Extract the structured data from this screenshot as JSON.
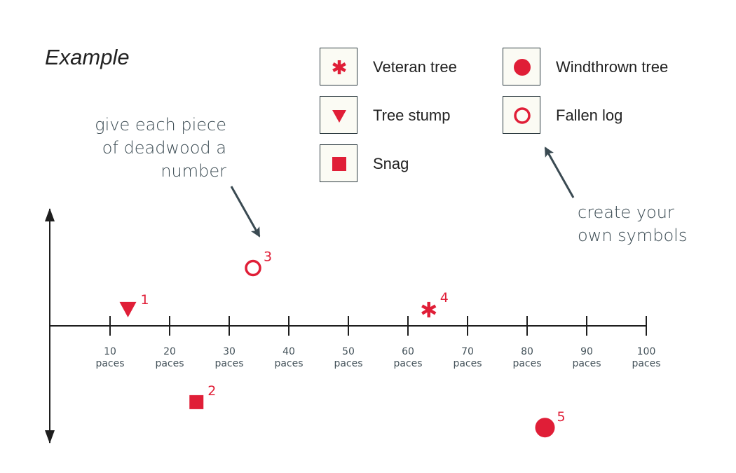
{
  "title": "Example",
  "legend": [
    {
      "symbol": "asterisk",
      "label": "Veteran tree"
    },
    {
      "symbol": "triangle",
      "label": "Tree stump"
    },
    {
      "symbol": "square",
      "label": "Snag"
    },
    {
      "symbol": "filled-circle",
      "label": "Windthrown tree"
    },
    {
      "symbol": "open-circle",
      "label": "Fallen log"
    }
  ],
  "notes": {
    "number_note": [
      "give each piece",
      "of deadwood a",
      "number"
    ],
    "symbols_note": [
      "create your",
      "own symbols"
    ]
  },
  "colors": {
    "symbol": "#e01e37",
    "axis": "#1e1e1e",
    "arrow": "#3a4a52"
  },
  "chart_data": {
    "type": "scatter",
    "x_ticks": [
      10,
      20,
      30,
      40,
      50,
      60,
      70,
      80,
      90,
      100
    ],
    "x_unit": "paces",
    "xlim": [
      0,
      100
    ],
    "points": [
      {
        "number": "1",
        "symbol": "triangle",
        "x": 13,
        "y": 0.7
      },
      {
        "number": "2",
        "symbol": "square",
        "x": 24.5,
        "y": -3.3
      },
      {
        "number": "3",
        "symbol": "open-circle",
        "x": 34,
        "y": 2.5
      },
      {
        "number": "4",
        "symbol": "asterisk",
        "x": 63.5,
        "y": 0.7
      },
      {
        "number": "5",
        "symbol": "filled-circle",
        "x": 83,
        "y": -4.4
      }
    ]
  }
}
